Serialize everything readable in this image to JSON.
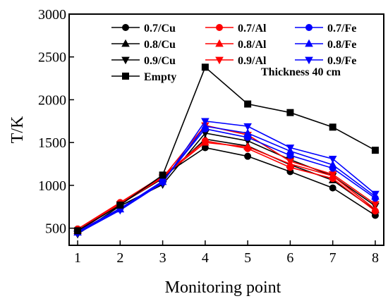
{
  "chart_data": {
    "type": "line",
    "xlabel": "Monitoring point",
    "ylabel": "T/K",
    "xlim": [
      0.8,
      8.2
    ],
    "ylim": [
      300,
      3000
    ],
    "x_ticks": [
      "1",
      "2",
      "3",
      "4",
      "5",
      "6",
      "7",
      "8"
    ],
    "y_ticks": [
      "500",
      "1000",
      "1500",
      "2000",
      "2500",
      "3000"
    ],
    "x": [
      1,
      2,
      3,
      4,
      5,
      6,
      7,
      8
    ],
    "annotation": "Thickness 40 cm",
    "legend_position": "top",
    "series": [
      {
        "name": "0.7/Cu",
        "color": "#000000",
        "marker": "circle",
        "values": [
          490,
          790,
          1110,
          1440,
          1340,
          1160,
          970,
          650
        ]
      },
      {
        "name": "0.8/Cu",
        "color": "#000000",
        "marker": "triangle-up",
        "values": [
          470,
          780,
          1080,
          1540,
          1460,
          1240,
          1060,
          710
        ]
      },
      {
        "name": "0.9/Cu",
        "color": "#000000",
        "marker": "triangle-down",
        "values": [
          430,
          760,
          1010,
          1610,
          1520,
          1300,
          1110,
          760
        ]
      },
      {
        "name": "0.7/Al",
        "color": "#ff0000",
        "marker": "circle",
        "values": [
          490,
          800,
          1110,
          1520,
          1430,
          1210,
          1080,
          700
        ]
      },
      {
        "name": "0.8/Al",
        "color": "#ff0000",
        "marker": "triangle-up",
        "values": [
          470,
          790,
          1100,
          1500,
          1450,
          1250,
          1110,
          720
        ]
      },
      {
        "name": "0.9/Al",
        "color": "#ff0000",
        "marker": "triangle-down",
        "values": [
          460,
          780,
          1090,
          1700,
          1590,
          1280,
          1130,
          780
        ]
      },
      {
        "name": "0.7/Fe",
        "color": "#0000ff",
        "marker": "circle",
        "values": [
          460,
          730,
          1050,
          1660,
          1560,
          1350,
          1200,
          850
        ]
      },
      {
        "name": "0.8/Fe",
        "color": "#0000ff",
        "marker": "triangle-up",
        "values": [
          450,
          720,
          1040,
          1690,
          1610,
          1400,
          1240,
          870
        ]
      },
      {
        "name": "0.9/Fe",
        "color": "#0000ff",
        "marker": "triangle-down",
        "values": [
          440,
          710,
          1030,
          1750,
          1690,
          1440,
          1310,
          900
        ]
      },
      {
        "name": "Empty",
        "color": "#000000",
        "marker": "square",
        "values": [
          470,
          770,
          1120,
          2380,
          1950,
          1850,
          1680,
          1410
        ]
      }
    ]
  }
}
